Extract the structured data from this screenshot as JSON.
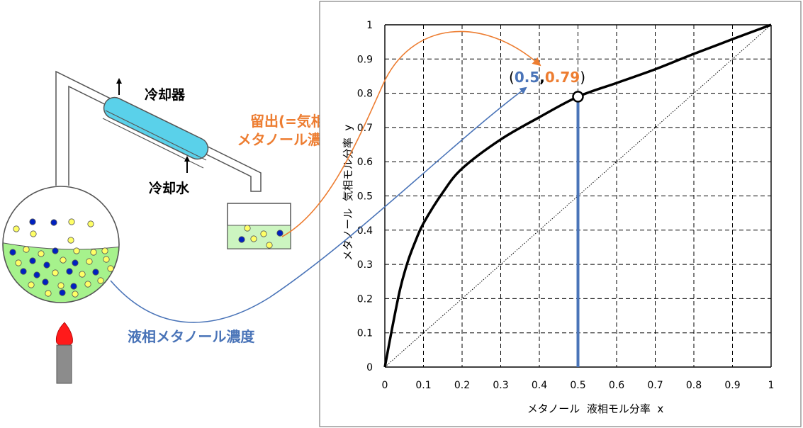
{
  "apparatus": {
    "condenser_label": "冷却器",
    "cooling_water_label": "冷却水",
    "distillate_label_line1": "留出(=気相)",
    "distillate_label_line2": "メタノール濃度",
    "liquid_label": "液相メタノール濃度"
  },
  "colors": {
    "blue": "#4a74b8",
    "orange": "#ed7d31",
    "condenser": "#5ad1ea",
    "liquid": "#a6f28c",
    "flame": "#ff1a1a",
    "dot_blue": "#0020c0",
    "dot_yellow": "#ffff66"
  },
  "chart_data": {
    "type": "line",
    "xlabel": "メタノール  液相モル分率  x",
    "ylabel": "メタノール  気相モル分率  y",
    "xlim": [
      0,
      1
    ],
    "ylim": [
      0,
      1
    ],
    "xticks": [
      "0",
      "0.1",
      "0.2",
      "0.3",
      "0.4",
      "0.5",
      "0.6",
      "0.7",
      "0.8",
      "0.9",
      "1"
    ],
    "yticks": [
      "0",
      "0.1",
      "0.2",
      "0.3",
      "0.4",
      "0.5",
      "0.6",
      "0.7",
      "0.8",
      "0.9",
      "1"
    ],
    "grid": true,
    "series": [
      {
        "kind": "equilibrium",
        "x": [
          0,
          0.02,
          0.04,
          0.06,
          0.08,
          0.1,
          0.15,
          0.2,
          0.3,
          0.4,
          0.5,
          0.6,
          0.7,
          0.8,
          0.9,
          1.0
        ],
        "y": [
          0,
          0.12,
          0.23,
          0.31,
          0.37,
          0.42,
          0.51,
          0.58,
          0.665,
          0.73,
          0.79,
          0.83,
          0.87,
          0.915,
          0.958,
          1.0
        ]
      },
      {
        "kind": "diagonal",
        "x": [
          0,
          1
        ],
        "y": [
          0,
          1
        ]
      }
    ],
    "highlight_point": {
      "x": 0.5,
      "y": 0.79
    },
    "annotation": {
      "open": "(",
      "x_text": "0.5",
      "comma": ",",
      "y_text": "0.79",
      "close": ")"
    }
  }
}
